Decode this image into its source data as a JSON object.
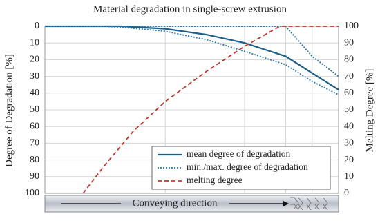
{
  "chart_data": {
    "type": "line",
    "title": "Material degradation in single-screw extrusion",
    "y_label": "Degree of Degradation [%]",
    "y2_label": "Melting Degree [%]",
    "annotation": "Conveying direction",
    "x": [
      0,
      20,
      26,
      41,
      55,
      68,
      82,
      91,
      100
    ],
    "xlim": [
      0,
      100
    ],
    "xgrid": [
      41,
      68,
      82,
      91
    ],
    "ylim": [
      0,
      100
    ],
    "y_inverted": true,
    "yticks": [
      0,
      10,
      20,
      30,
      40,
      50,
      60,
      70,
      80,
      90,
      100
    ],
    "y2lim": [
      0,
      100
    ],
    "y2ticks": [
      0,
      10,
      20,
      30,
      40,
      50,
      60,
      70,
      80,
      90,
      100
    ],
    "grid": true,
    "legend": "lower right",
    "series": [
      {
        "name": "mean degree of degradation",
        "color": "#1d5e86",
        "style": "solid",
        "values": [
          0,
          0,
          0,
          1.5,
          5,
          10,
          18,
          28,
          38
        ]
      },
      {
        "name": "min./max. degree of degradation",
        "color": "#2a78aa",
        "style": "dotted",
        "values": [
          0,
          0,
          0.5,
          3,
          8,
          15,
          23,
          33,
          41
        ],
        "values_min": [
          0,
          0,
          0,
          0,
          0,
          0,
          0,
          18,
          30
        ]
      },
      {
        "name": "melting degree",
        "color": "#c0392b",
        "style": "dashed",
        "axis": "y2",
        "x": [
          13,
          20,
          30,
          41,
          55,
          68,
          80,
          100
        ],
        "values": [
          0,
          16,
          37,
          55,
          73,
          88,
          100,
          100
        ]
      }
    ]
  }
}
